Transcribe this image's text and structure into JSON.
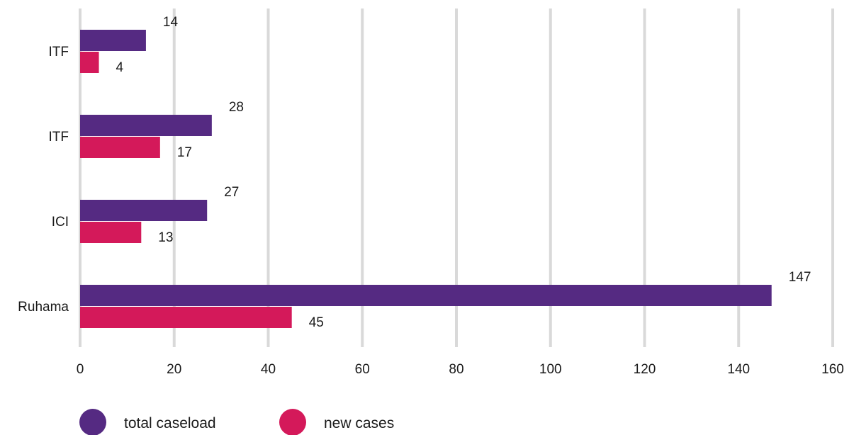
{
  "chart_data": {
    "type": "bar",
    "orientation": "horizontal",
    "title": "",
    "xlabel": "",
    "ylabel": "",
    "categories": [
      "ITF",
      "ITF",
      "ICI",
      "Ruhama"
    ],
    "series": [
      {
        "name": "total caseload",
        "values": [
          14,
          28,
          27,
          147
        ],
        "color": "#552a82"
      },
      {
        "name": "new cases",
        "values": [
          4,
          17,
          13,
          45
        ],
        "color": "#d4195a"
      }
    ],
    "xlim": [
      0,
      160
    ],
    "x_ticks": [
      0,
      20,
      40,
      60,
      80,
      100,
      120,
      140,
      160
    ],
    "grid": "vertical",
    "grid_color": "#d9d9d9",
    "data_labels": true,
    "legend_position": "bottom-left"
  }
}
